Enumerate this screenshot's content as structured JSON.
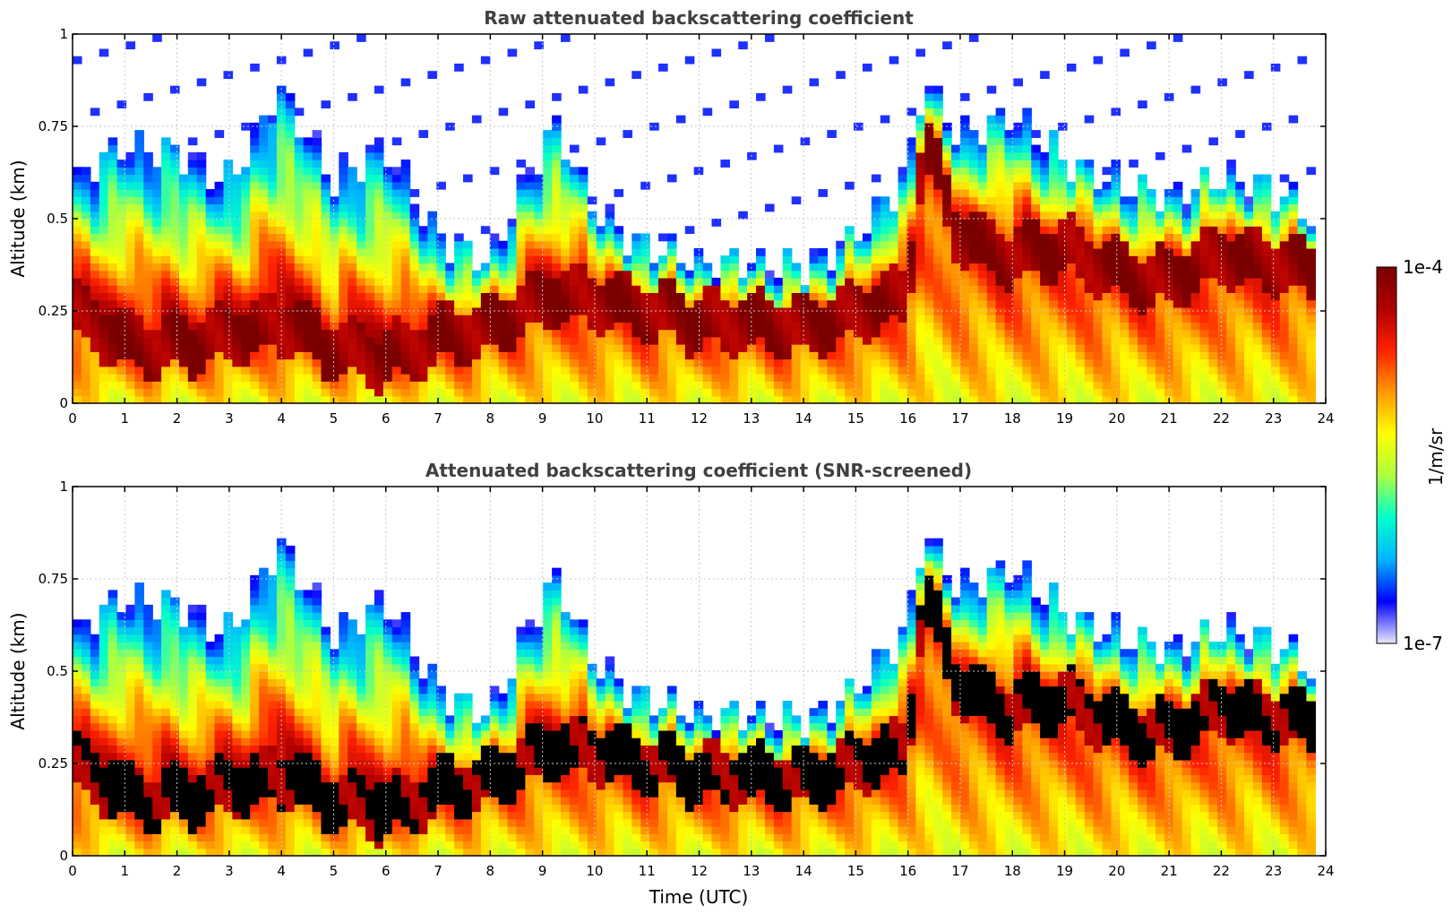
{
  "chart_data": [
    {
      "type": "heatmap",
      "title": "Raw attenuated backscattering coefficient",
      "xlabel": "",
      "ylabel": "Altitude (km)",
      "xlim": [
        0,
        24
      ],
      "ylim": [
        0,
        1
      ],
      "grid": true,
      "screened": false,
      "x_ticks": [
        "0",
        "1",
        "2",
        "3",
        "4",
        "5",
        "6",
        "7",
        "8",
        "9",
        "10",
        "11",
        "12",
        "13",
        "14",
        "15",
        "16",
        "17",
        "18",
        "19",
        "20",
        "21",
        "22",
        "23",
        "24"
      ],
      "y_ticks": [
        "0",
        "0.25",
        "0.5",
        "0.75",
        "1"
      ],
      "layer_profile": {
        "x_hours": [
          0,
          1,
          2,
          3,
          4,
          5,
          6,
          7,
          8,
          9,
          9.3,
          10,
          11,
          12,
          13,
          14,
          15,
          16,
          16.3,
          17,
          18,
          19,
          20,
          21,
          22,
          23,
          23.8
        ],
        "layer_center_km": [
          0.25,
          0.17,
          0.15,
          0.19,
          0.22,
          0.15,
          0.12,
          0.18,
          0.2,
          0.28,
          0.3,
          0.28,
          0.25,
          0.22,
          0.22,
          0.2,
          0.24,
          0.3,
          0.72,
          0.45,
          0.4,
          0.42,
          0.35,
          0.33,
          0.4,
          0.38,
          0.35
        ],
        "top_km": [
          0.6,
          0.7,
          0.68,
          0.6,
          0.85,
          0.6,
          0.7,
          0.45,
          0.38,
          0.7,
          0.75,
          0.52,
          0.42,
          0.38,
          0.38,
          0.36,
          0.45,
          0.62,
          0.88,
          0.72,
          0.78,
          0.66,
          0.6,
          0.56,
          0.62,
          0.58,
          0.5
        ]
      }
    },
    {
      "type": "heatmap",
      "title": "Attenuated backscattering coefficient (SNR-screened)",
      "xlabel": "Time (UTC)",
      "ylabel": "Altitude (km)",
      "xlim": [
        0,
        24
      ],
      "ylim": [
        0,
        1
      ],
      "grid": true,
      "screened": true,
      "x_ticks": [
        "0",
        "1",
        "2",
        "3",
        "4",
        "5",
        "6",
        "7",
        "8",
        "9",
        "10",
        "11",
        "12",
        "13",
        "14",
        "15",
        "16",
        "17",
        "18",
        "19",
        "20",
        "21",
        "22",
        "23",
        "24"
      ],
      "y_ticks": [
        "0",
        "0.25",
        "0.5",
        "0.75",
        "1"
      ],
      "layer_profile": {
        "x_hours": [
          0,
          1,
          2,
          3,
          4,
          5,
          6,
          7,
          8,
          9,
          9.3,
          10,
          11,
          12,
          13,
          14,
          15,
          16,
          16.3,
          17,
          18,
          19,
          20,
          21,
          22,
          23,
          23.8
        ],
        "layer_center_km": [
          0.25,
          0.17,
          0.15,
          0.19,
          0.22,
          0.15,
          0.12,
          0.18,
          0.2,
          0.28,
          0.3,
          0.28,
          0.25,
          0.22,
          0.22,
          0.2,
          0.24,
          0.3,
          0.72,
          0.45,
          0.4,
          0.42,
          0.35,
          0.33,
          0.4,
          0.38,
          0.35
        ],
        "top_km": [
          0.6,
          0.7,
          0.68,
          0.6,
          0.85,
          0.6,
          0.7,
          0.45,
          0.38,
          0.7,
          0.75,
          0.52,
          0.42,
          0.38,
          0.38,
          0.36,
          0.45,
          0.62,
          0.88,
          0.72,
          0.78,
          0.66,
          0.6,
          0.56,
          0.62,
          0.58,
          0.5
        ]
      }
    }
  ],
  "colorbar": {
    "label": "1/m/sr",
    "max_label": "1e-4",
    "min_label": "1e-7",
    "colors": [
      "#e8e8fa",
      "#0000ff",
      "#00b4ff",
      "#00ffcc",
      "#aaff44",
      "#ffff00",
      "#ff9900",
      "#ff2200",
      "#b00000",
      "#7a0000"
    ]
  }
}
